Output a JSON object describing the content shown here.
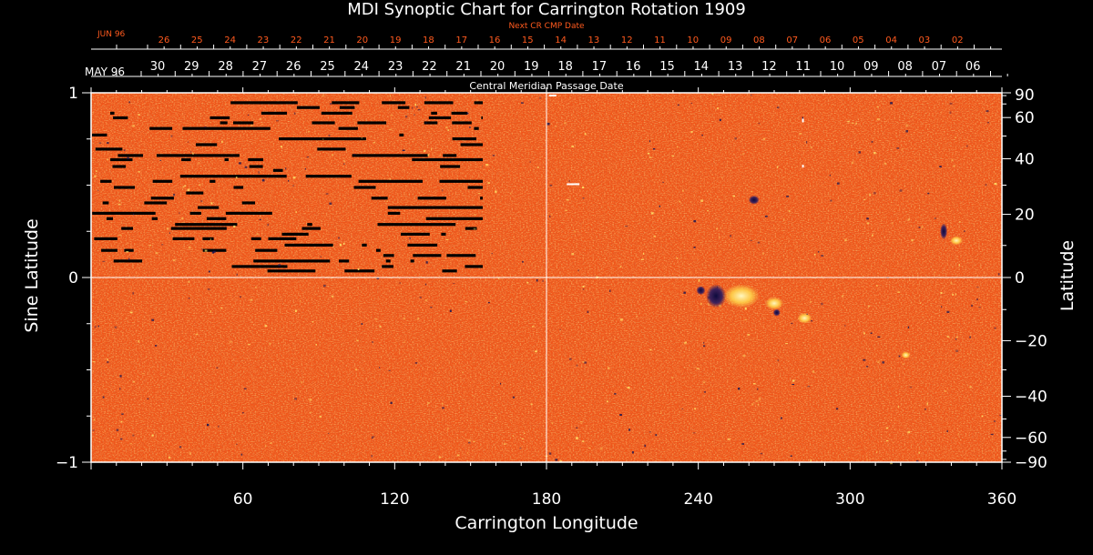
{
  "chart_data": {
    "type": "heatmap",
    "title": "MDI Synoptic Chart for Carrington Rotation 1909",
    "xlabel": "Carrington Longitude",
    "ylabel_left": "Sine Latitude",
    "ylabel_right": "Latitude",
    "xlim": [
      0,
      360
    ],
    "ylim": [
      -1,
      1
    ],
    "x_ticks": [
      "60",
      "120",
      "180",
      "240",
      "300",
      "360"
    ],
    "x_tick_values": [
      60,
      120,
      180,
      240,
      300,
      360
    ],
    "y_left_ticks": [
      "1",
      "0",
      "−1"
    ],
    "y_left_tick_values": [
      1,
      0,
      -1
    ],
    "y_right_ticks": [
      "90",
      "60",
      "40",
      "20",
      "0",
      "−20",
      "−40",
      "−60",
      "−90"
    ],
    "y_right_tick_values": [
      90,
      60,
      40,
      20,
      0,
      -20,
      -40,
      -60,
      -90
    ],
    "top_axis_label": "Central Meridian Passage Date",
    "top_axis_start_label": "MAY 96",
    "top_axis_dates": [
      "30",
      "29",
      "28",
      "27",
      "26",
      "25",
      "24",
      "23",
      "22",
      "21",
      "20",
      "19",
      "18",
      "17",
      "16",
      "15",
      "14",
      "13",
      "12",
      "11",
      "10",
      "09",
      "08",
      "07",
      "06"
    ],
    "next_axis_label": "Next CR CMP Date",
    "next_axis_start_label": "JUN 96",
    "next_axis_dates": [
      "26",
      "25",
      "24",
      "23",
      "22",
      "21",
      "20",
      "19",
      "18",
      "17",
      "16",
      "15",
      "14",
      "13",
      "12",
      "11",
      "10",
      "09",
      "08",
      "07",
      "06",
      "05",
      "04",
      "03",
      "02"
    ],
    "colors": {
      "background": "#000000",
      "field_base": "#f0561a",
      "positive_polarity": "#ffe56a",
      "negative_polarity": "#1a1550",
      "data_gap": "#000000",
      "axis": "#ffffff",
      "next_axis": "#ff5a1e"
    },
    "grid": true
  }
}
